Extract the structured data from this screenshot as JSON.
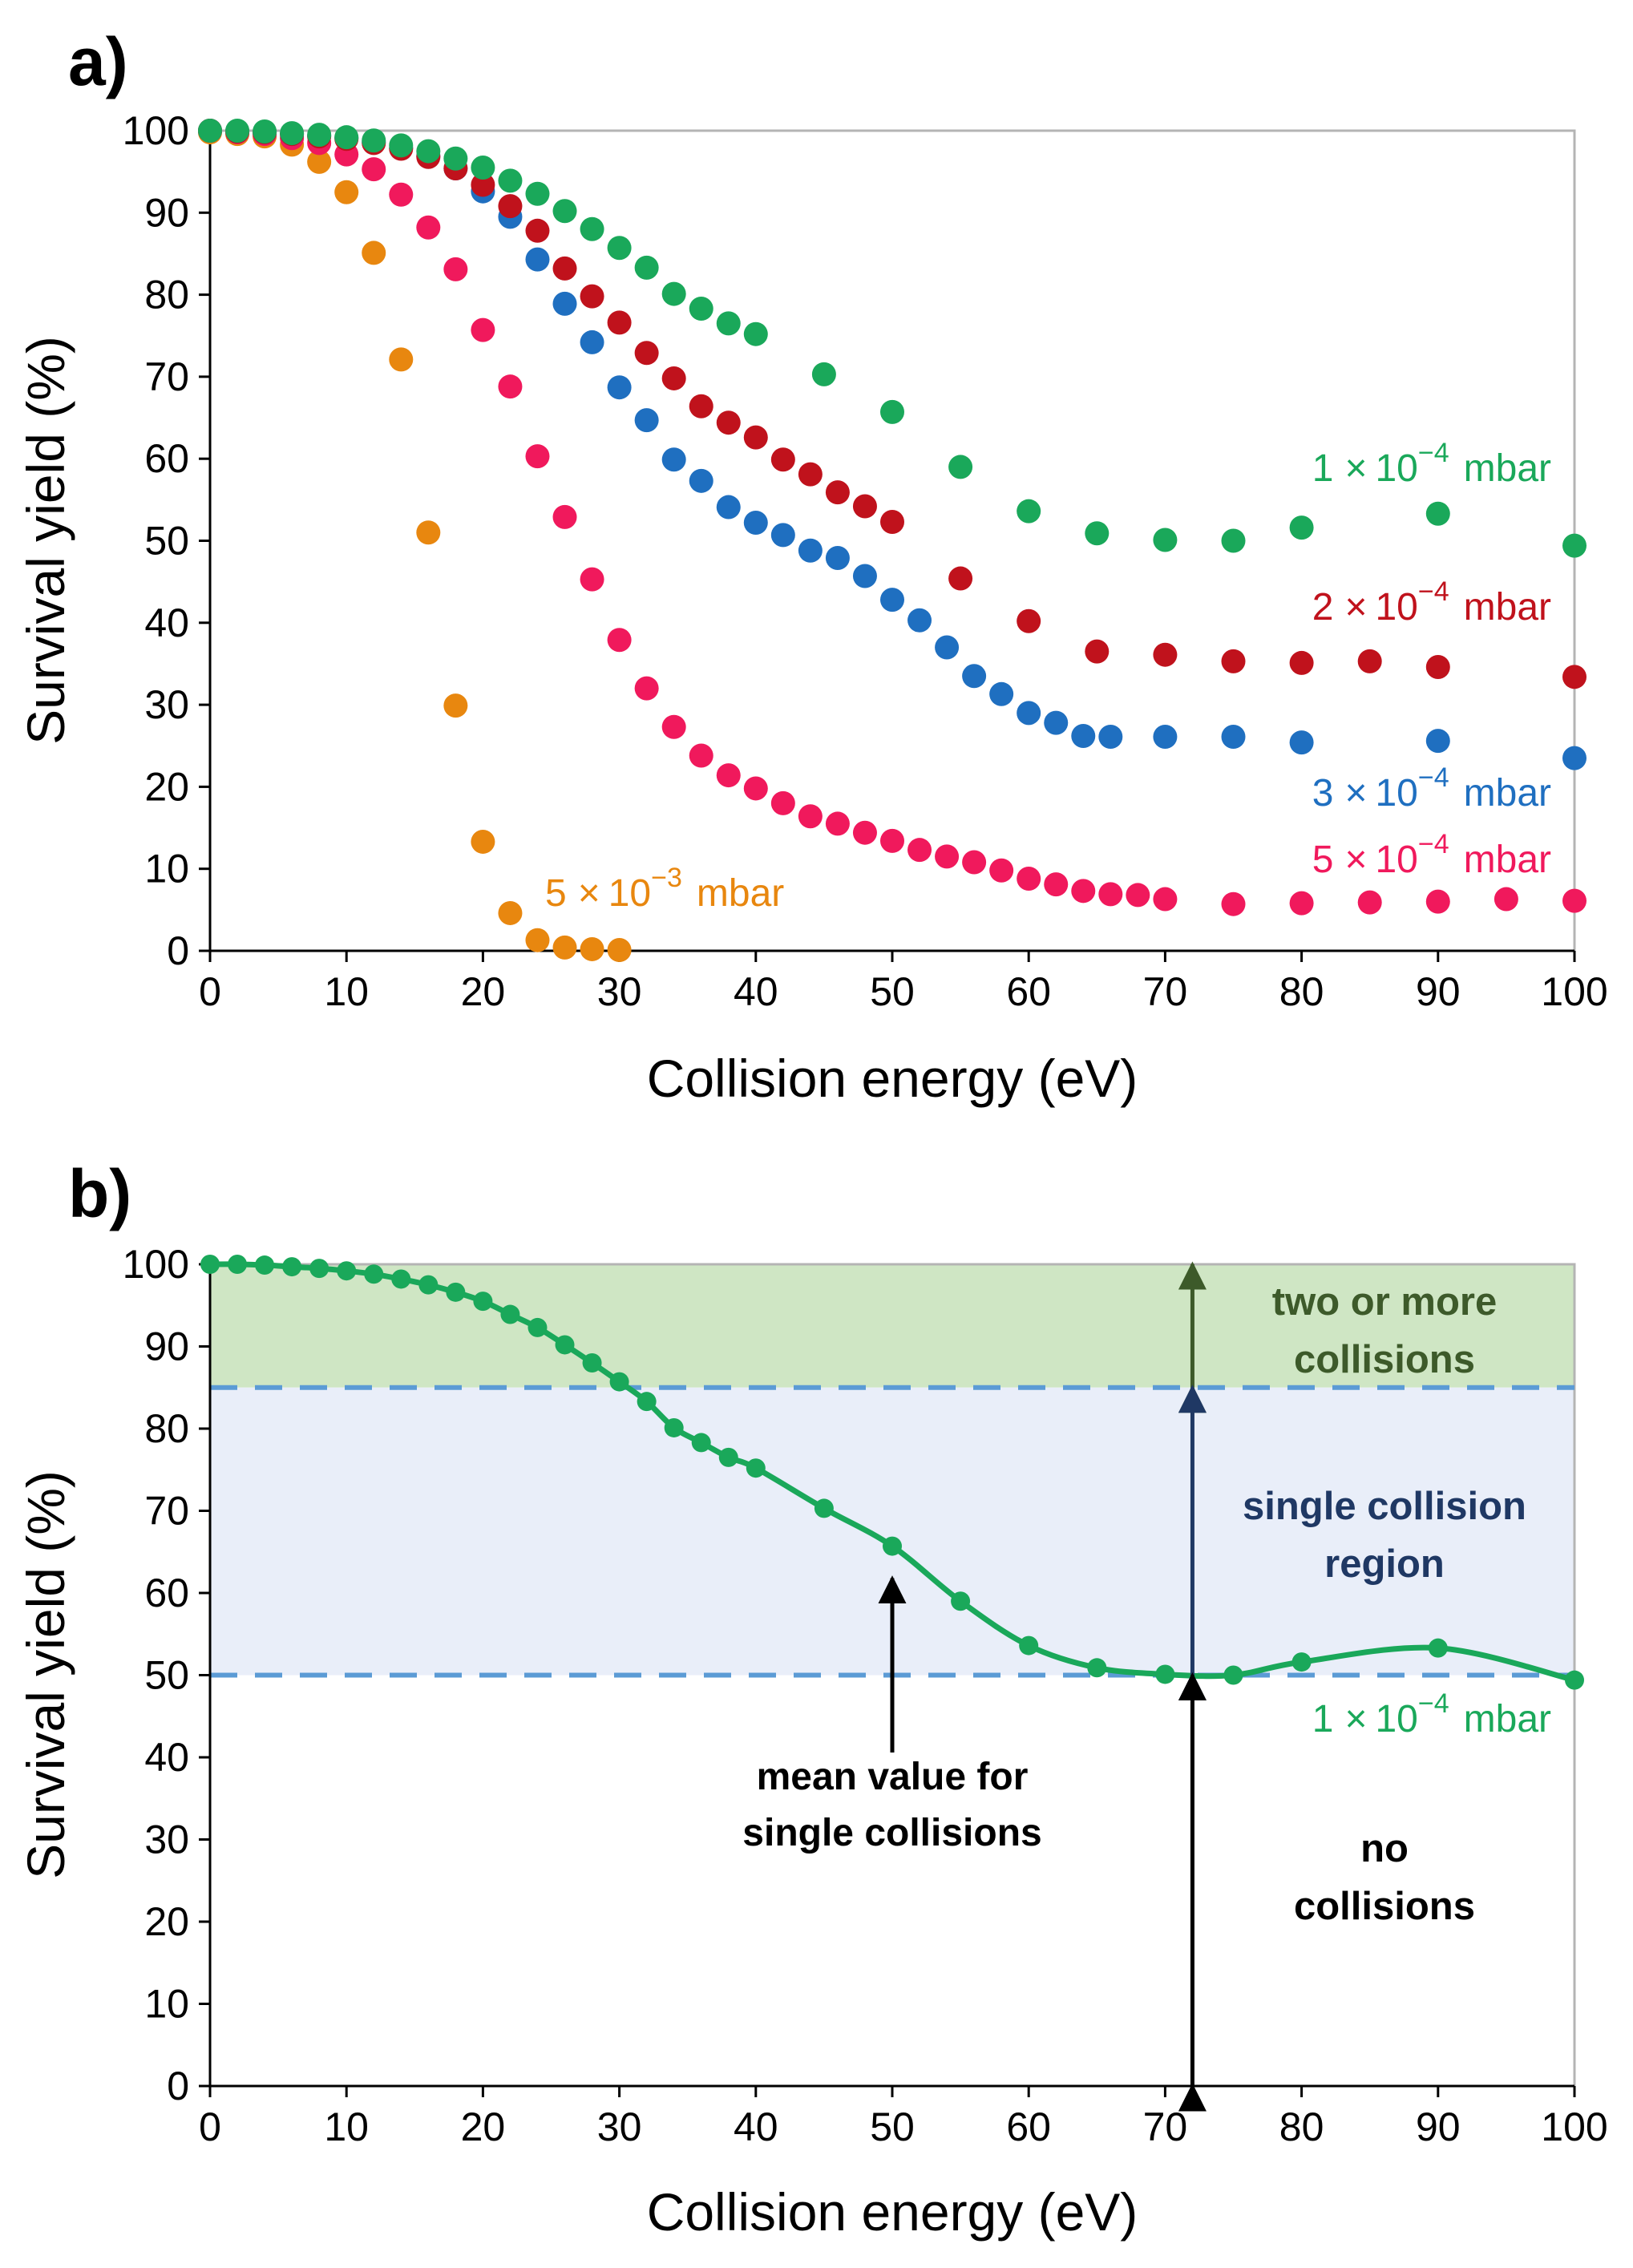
{
  "chart_data": [
    {
      "type": "scatter",
      "panel_label": "a)",
      "title": "",
      "xlabel": "Collision energy (eV)",
      "ylabel": "Survival yield (%)",
      "xlim": [
        0,
        100
      ],
      "ylim": [
        0,
        100
      ],
      "xticks": [
        0,
        10,
        20,
        30,
        40,
        50,
        60,
        70,
        80,
        90,
        100
      ],
      "yticks": [
        0,
        10,
        20,
        30,
        40,
        50,
        60,
        70,
        80,
        90,
        100
      ],
      "grid": false,
      "series": [
        {
          "name": "1 × 10⁻⁴ mbar",
          "label_parts": {
            "coef": "1",
            "times": "×",
            "base": "10",
            "exp": "−4",
            "unit": "mbar"
          },
          "color": "#1aa85a",
          "x": [
            0,
            2,
            4,
            6,
            8,
            10,
            12,
            14,
            16,
            18,
            20,
            22,
            24,
            26,
            28,
            30,
            32,
            34,
            36,
            38,
            40,
            45,
            50,
            55,
            60,
            65,
            70,
            75,
            80,
            90,
            100
          ],
          "y": [
            100,
            100,
            99.9,
            99.7,
            99.5,
            99.2,
            98.8,
            98.2,
            97.5,
            96.6,
            95.5,
            93.9,
            92.3,
            90.2,
            88,
            85.7,
            83.3,
            80.1,
            78.3,
            76.5,
            75.2,
            70.3,
            65.7,
            59,
            53.6,
            50.9,
            50.1,
            50,
            51.6,
            53.3,
            49.4
          ]
        },
        {
          "name": "2 × 10⁻⁴ mbar",
          "label_parts": {
            "coef": "2",
            "times": "×",
            "base": "10",
            "exp": "−4",
            "unit": "mbar"
          },
          "color": "#c0121c",
          "x": [
            0,
            2,
            4,
            6,
            8,
            10,
            12,
            14,
            16,
            18,
            20,
            22,
            24,
            26,
            28,
            30,
            32,
            34,
            36,
            38,
            40,
            42,
            44,
            46,
            48,
            50,
            55,
            60,
            65,
            70,
            75,
            80,
            85,
            90,
            100
          ],
          "y": [
            100,
            99.9,
            99.8,
            99.6,
            99.3,
            99,
            98.5,
            97.8,
            96.8,
            95.4,
            93.4,
            90.8,
            87.8,
            83.2,
            79.8,
            76.6,
            72.9,
            69.8,
            66.4,
            64.4,
            62.6,
            59.9,
            58.1,
            55.9,
            54.2,
            52.3,
            45.4,
            40.2,
            36.5,
            36.1,
            35.3,
            35.1,
            35.3,
            34.6,
            33.4
          ]
        },
        {
          "name": "3 × 10⁻⁴ mbar",
          "label_parts": {
            "coef": "3",
            "times": "×",
            "base": "10",
            "exp": "−4",
            "unit": "mbar"
          },
          "color": "#1f6fc0",
          "x": [
            0,
            2,
            4,
            6,
            8,
            10,
            12,
            14,
            16,
            18,
            20,
            22,
            24,
            26,
            28,
            30,
            32,
            34,
            36,
            38,
            40,
            42,
            44,
            46,
            48,
            50,
            52,
            54,
            56,
            58,
            60,
            62,
            64,
            66,
            70,
            75,
            80,
            90,
            100
          ],
          "y": [
            100,
            99.9,
            99.8,
            99.6,
            99.4,
            99.1,
            98.6,
            97.9,
            96.9,
            95.4,
            92.6,
            89.5,
            84.3,
            78.9,
            74.2,
            68.7,
            64.7,
            59.9,
            57.3,
            54.1,
            52.2,
            50.7,
            48.8,
            47.9,
            45.7,
            42.8,
            40.3,
            37,
            33.5,
            31.3,
            29,
            27.8,
            26.2,
            26.1,
            26.1,
            26.1,
            25.4,
            25.6,
            23.5
          ]
        },
        {
          "name": "5 × 10⁻⁴ mbar",
          "label_parts": {
            "coef": "5",
            "times": "×",
            "base": "10",
            "exp": "−4",
            "unit": "mbar"
          },
          "color": "#f0195c",
          "x": [
            0,
            2,
            4,
            6,
            8,
            10,
            12,
            14,
            16,
            18,
            20,
            22,
            24,
            26,
            28,
            30,
            32,
            34,
            36,
            38,
            40,
            42,
            44,
            46,
            48,
            50,
            52,
            54,
            56,
            58,
            60,
            62,
            64,
            66,
            68,
            70,
            75,
            80,
            85,
            90,
            95,
            100
          ],
          "y": [
            100,
            99.8,
            99.6,
            99.1,
            98.5,
            97.1,
            95.3,
            92.2,
            88.2,
            83.1,
            75.7,
            68.8,
            60.3,
            52.9,
            45.3,
            37.9,
            32,
            27.3,
            23.8,
            21.4,
            19.8,
            18,
            16.4,
            15.5,
            14.4,
            13.4,
            12.3,
            11.5,
            10.8,
            9.8,
            8.8,
            8.1,
            7.3,
            6.9,
            6.8,
            6.3,
            5.7,
            5.8,
            5.9,
            6,
            6.3,
            6.1
          ]
        },
        {
          "name": "5 × 10⁻³ mbar",
          "label_parts": {
            "coef": "5",
            "times": "×",
            "base": "10",
            "exp": "−3",
            "unit": "mbar"
          },
          "color": "#e8870f",
          "x": [
            0,
            2,
            4,
            6,
            8,
            10,
            12,
            14,
            16,
            18,
            20,
            22,
            24,
            26,
            28,
            30
          ],
          "y": [
            99.8,
            99.6,
            99.3,
            98.3,
            96.2,
            92.5,
            85.1,
            72.1,
            51,
            29.9,
            13.3,
            4.6,
            1.3,
            0.4,
            0.2,
            0.1
          ]
        }
      ]
    },
    {
      "type": "line",
      "panel_label": "b)",
      "title": "",
      "xlabel": "Collision energy (eV)",
      "ylabel": "Survival yield (%)",
      "xlim": [
        0,
        100
      ],
      "ylim": [
        0,
        100
      ],
      "xticks": [
        0,
        10,
        20,
        30,
        40,
        50,
        60,
        70,
        80,
        90,
        100
      ],
      "yticks": [
        0,
        10,
        20,
        30,
        40,
        50,
        60,
        70,
        80,
        90,
        100
      ],
      "grid": false,
      "series": [
        {
          "name": "1 × 10⁻⁴ mbar",
          "label_parts": {
            "coef": "1",
            "times": "×",
            "base": "10",
            "exp": "−4",
            "unit": "mbar"
          },
          "color": "#1aa85a",
          "x": [
            0,
            2,
            4,
            6,
            8,
            10,
            12,
            14,
            16,
            18,
            20,
            22,
            24,
            26,
            28,
            30,
            32,
            34,
            36,
            38,
            40,
            45,
            50,
            55,
            60,
            65,
            70,
            75,
            80,
            90,
            100
          ],
          "y": [
            100,
            100,
            99.9,
            99.7,
            99.5,
            99.2,
            98.8,
            98.2,
            97.5,
            96.6,
            95.5,
            93.9,
            92.3,
            90.2,
            88,
            85.7,
            83.3,
            80.1,
            78.3,
            76.5,
            75.2,
            70.3,
            65.7,
            59,
            53.6,
            50.9,
            50.1,
            50,
            51.6,
            53.3,
            49.4
          ]
        }
      ],
      "regions": [
        {
          "name": "two or more collisions",
          "lines": [
            "two or more",
            "collisions"
          ],
          "y_range": [
            85,
            100
          ],
          "fill": "#cfe6c4",
          "text_color": "#3d5a2a",
          "arrow_color": "#3d5a2a"
        },
        {
          "name": "single collision region",
          "lines": [
            "single collision",
            "region"
          ],
          "y_range": [
            50,
            85
          ],
          "fill": "#e9eef9",
          "text_color": "#1f3864",
          "arrow_color": "#1f3864"
        },
        {
          "name": "no collisions",
          "lines": [
            "no",
            "collisions"
          ],
          "y_range": [
            0,
            50
          ],
          "fill": "none",
          "text_color": "#000000",
          "arrow_color": "#000000"
        }
      ],
      "reference_lines": [
        {
          "y": 85,
          "style": "dashed",
          "color": "#5b9bd5"
        },
        {
          "y": 50,
          "style": "dashed",
          "color": "#5b9bd5"
        }
      ],
      "region_arrow_x": 72,
      "annotation": {
        "lines": [
          "mean value for",
          "single collisions"
        ],
        "points_to": {
          "x": 50,
          "y": 65.7
        }
      }
    }
  ]
}
